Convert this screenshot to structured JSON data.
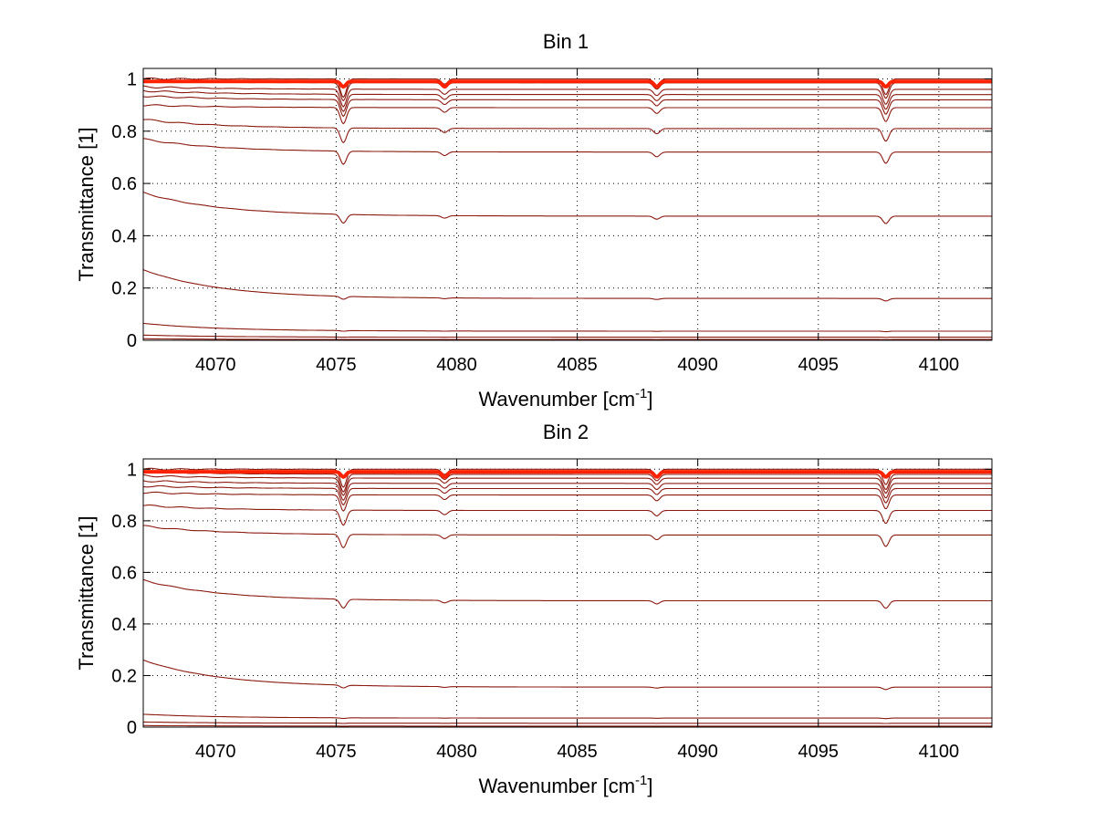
{
  "figure": {
    "background": "#ffffff"
  },
  "chart_data": [
    {
      "type": "line",
      "title": "Bin 1",
      "xlabel": "Wavenumber [cm",
      "xlabel_sup": "-1",
      "xlabel_end": "]",
      "ylabel": "Transmittance [1]",
      "xlim": [
        4067,
        4102.2
      ],
      "ylim": [
        0,
        1.04
      ],
      "xticks": [
        4070,
        4075,
        4080,
        4085,
        4090,
        4095,
        4100
      ],
      "yticks": [
        0,
        0.2,
        0.4,
        0.6,
        0.8,
        1
      ],
      "ytick_labels": [
        "0",
        "0.2",
        "0.4",
        "0.6",
        "0.8",
        "1"
      ],
      "grid": "dotted",
      "series_color": "#8b1a10",
      "top_band_color": "#ff2200",
      "top_band_level": 0.99,
      "absorption_lines": [
        {
          "x": 4075.3,
          "relative_depth": 0.07
        },
        {
          "x": 4079.5,
          "relative_depth": 0.02
        },
        {
          "x": 4088.3,
          "relative_depth": 0.025
        },
        {
          "x": 4097.8,
          "relative_depth": 0.06
        }
      ],
      "series": [
        {
          "start": 1.0,
          "level": 1.0
        },
        {
          "start": 0.99,
          "level": 0.985
        },
        {
          "start": 0.97,
          "level": 0.96
        },
        {
          "start": 0.955,
          "level": 0.94
        },
        {
          "start": 0.935,
          "level": 0.92
        },
        {
          "start": 0.9,
          "level": 0.89
        },
        {
          "start": 0.845,
          "level": 0.81
        },
        {
          "start": 0.77,
          "level": 0.72
        },
        {
          "start": 0.565,
          "level": 0.475
        },
        {
          "start": 0.27,
          "level": 0.16
        },
        {
          "start": 0.065,
          "level": 0.035
        },
        {
          "start": 0.02,
          "level": 0.012
        },
        {
          "start": 0.006,
          "level": 0.003
        }
      ]
    },
    {
      "type": "line",
      "title": "Bin 2",
      "xlabel": "Wavenumber [cm",
      "xlabel_sup": "-1",
      "xlabel_end": "]",
      "ylabel": "Transmittance [1]",
      "xlim": [
        4067,
        4102.2
      ],
      "ylim": [
        0,
        1.04
      ],
      "xticks": [
        4070,
        4075,
        4080,
        4085,
        4090,
        4095,
        4100
      ],
      "yticks": [
        0,
        0.2,
        0.4,
        0.6,
        0.8,
        1
      ],
      "ytick_labels": [
        "0",
        "0.2",
        "0.4",
        "0.6",
        "0.8",
        "1"
      ],
      "grid": "dotted",
      "series_color": "#8b1a10",
      "top_band_color": "#ff2200",
      "top_band_level": 0.99,
      "absorption_lines": [
        {
          "x": 4075.3,
          "relative_depth": 0.07
        },
        {
          "x": 4079.5,
          "relative_depth": 0.02
        },
        {
          "x": 4088.3,
          "relative_depth": 0.025
        },
        {
          "x": 4097.8,
          "relative_depth": 0.06
        }
      ],
      "series": [
        {
          "start": 1.0,
          "level": 1.0
        },
        {
          "start": 0.99,
          "level": 0.98
        },
        {
          "start": 0.975,
          "level": 0.965
        },
        {
          "start": 0.955,
          "level": 0.945
        },
        {
          "start": 0.935,
          "level": 0.925
        },
        {
          "start": 0.91,
          "level": 0.9
        },
        {
          "start": 0.86,
          "level": 0.84
        },
        {
          "start": 0.78,
          "level": 0.745
        },
        {
          "start": 0.57,
          "level": 0.49
        },
        {
          "start": 0.26,
          "level": 0.155
        },
        {
          "start": 0.05,
          "level": 0.035
        },
        {
          "start": 0.02,
          "level": 0.015
        },
        {
          "start": 0.006,
          "level": 0.004
        }
      ]
    }
  ]
}
